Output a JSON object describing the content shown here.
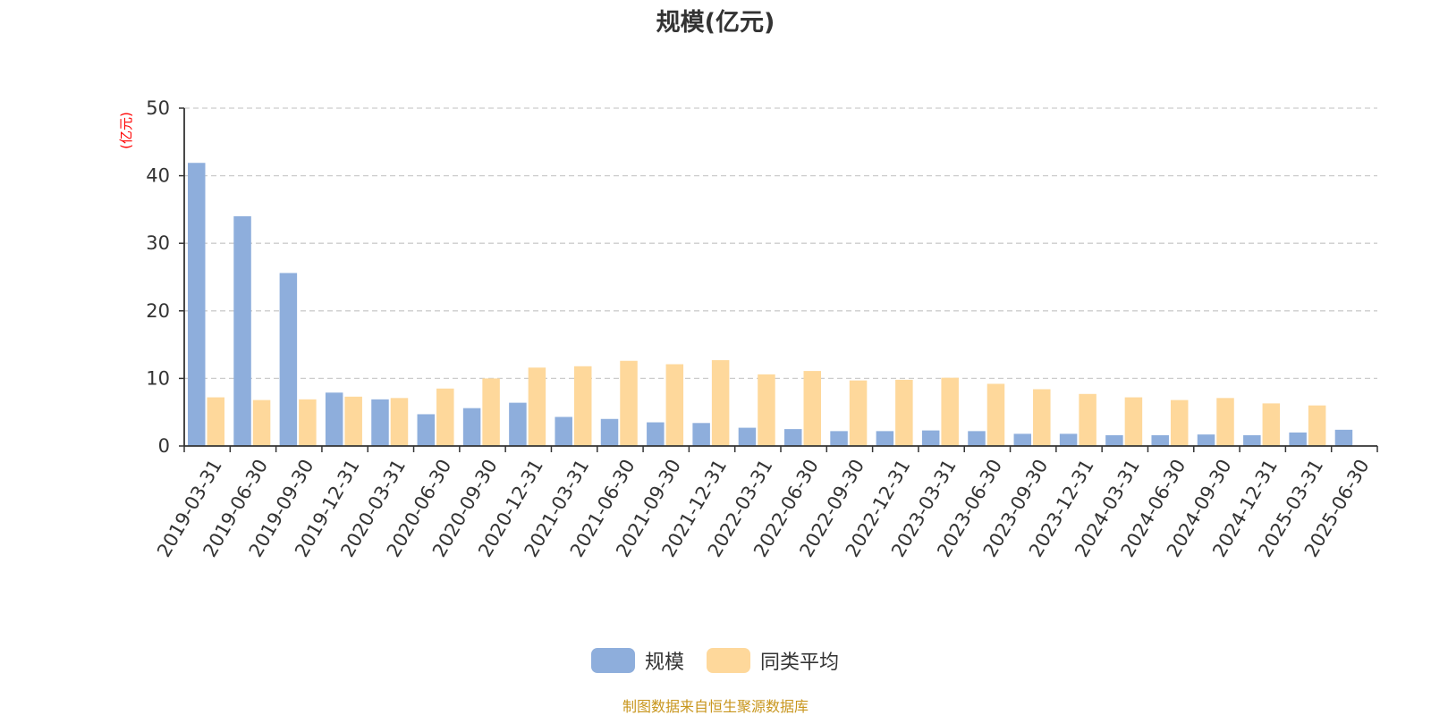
{
  "chart_data": {
    "type": "bar",
    "title": "规模(亿元)",
    "ylabel": "(亿元)",
    "ylim": [
      0,
      50
    ],
    "yticks": [
      0,
      10,
      20,
      30,
      40,
      50
    ],
    "grid": true,
    "legend_position": "bottom",
    "categories": [
      "2019-03-31",
      "2019-06-30",
      "2019-09-30",
      "2019-12-31",
      "2020-03-31",
      "2020-06-30",
      "2020-09-30",
      "2020-12-31",
      "2021-03-31",
      "2021-06-30",
      "2021-09-30",
      "2021-12-31",
      "2022-03-31",
      "2022-06-30",
      "2022-09-30",
      "2022-12-31",
      "2023-03-31",
      "2023-06-30",
      "2023-09-30",
      "2023-12-31",
      "2024-03-31",
      "2024-06-30",
      "2024-09-30",
      "2024-12-31",
      "2025-03-31",
      "2025-06-30"
    ],
    "series": [
      {
        "name": "规模",
        "color": "#8eaedc",
        "values": [
          41.9,
          34.0,
          25.6,
          7.9,
          6.9,
          4.7,
          5.6,
          6.4,
          4.3,
          4.0,
          3.5,
          3.4,
          2.7,
          2.5,
          2.2,
          2.2,
          2.3,
          2.2,
          1.8,
          1.8,
          1.6,
          1.6,
          1.7,
          1.6,
          2.0,
          2.4
        ]
      },
      {
        "name": "同类平均",
        "color": "#fed89b",
        "values": [
          7.2,
          6.8,
          6.9,
          7.3,
          7.1,
          8.5,
          10.0,
          11.6,
          11.8,
          12.6,
          12.1,
          12.7,
          10.6,
          11.1,
          9.7,
          9.8,
          10.1,
          9.2,
          8.4,
          7.7,
          7.2,
          6.8,
          7.1,
          6.3,
          6.0,
          null
        ]
      }
    ]
  },
  "axis_color": "#333333",
  "grid_color": "#cccccc",
  "unit_color": "#ff0000",
  "source_color": "#c8961e",
  "source_text": "制图数据来自恒生聚源数据库"
}
